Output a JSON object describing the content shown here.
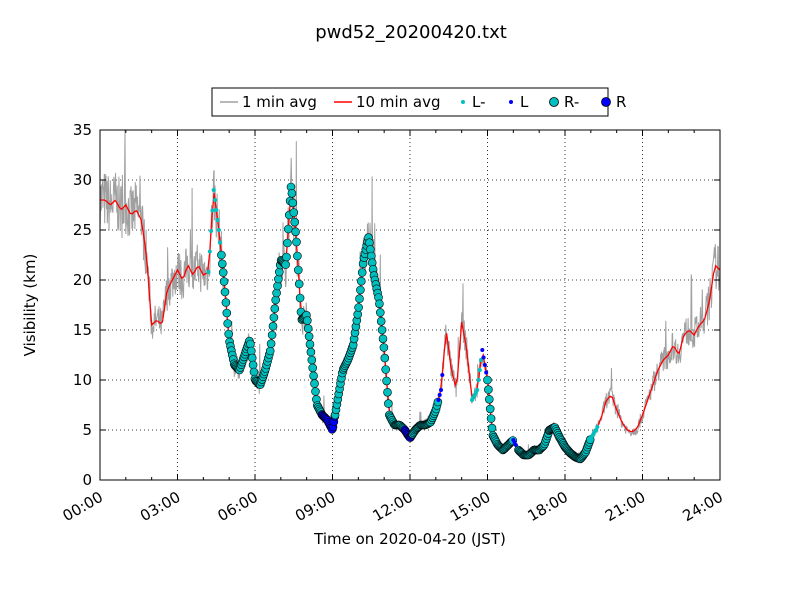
{
  "chart_data": {
    "type": "line",
    "title": "pwd52_20200420.txt",
    "xlabel": "Time on 2020-04-20 (JST)",
    "ylabel": "Visibility (km)",
    "xlim": [
      0,
      24
    ],
    "ylim": [
      0,
      35
    ],
    "xticks": [
      {
        "value": 0,
        "label": "00:00"
      },
      {
        "value": 3,
        "label": "03:00"
      },
      {
        "value": 6,
        "label": "06:00"
      },
      {
        "value": 9,
        "label": "09:00"
      },
      {
        "value": 12,
        "label": "12:00"
      },
      {
        "value": 15,
        "label": "15:00"
      },
      {
        "value": 18,
        "label": "18:00"
      },
      {
        "value": 21,
        "label": "21:00"
      },
      {
        "value": 24,
        "label": "24:00"
      }
    ],
    "yticks": [
      {
        "value": 0,
        "label": "0"
      },
      {
        "value": 5,
        "label": "5"
      },
      {
        "value": 10,
        "label": "10"
      },
      {
        "value": 15,
        "label": "15"
      },
      {
        "value": 20,
        "label": "20"
      },
      {
        "value": 25,
        "label": "25"
      },
      {
        "value": 30,
        "label": "30"
      },
      {
        "value": 35,
        "label": "35"
      }
    ],
    "grid": true,
    "legend_position": "top-center",
    "legend": [
      {
        "name": "1 min avg",
        "kind": "line",
        "color": "#a0a0a0"
      },
      {
        "name": "10 min avg",
        "kind": "line",
        "color": "#ff0000"
      },
      {
        "name": "L-",
        "kind": "small-dot",
        "color": "#00bfbf"
      },
      {
        "name": "L",
        "kind": "small-dot",
        "color": "#0000ff"
      },
      {
        "name": "R-",
        "kind": "big-dot",
        "color": "#00bfbf"
      },
      {
        "name": "R",
        "kind": "big-dot",
        "color": "#0000ff"
      }
    ],
    "series": [
      {
        "name": "10 min avg",
        "color": "#ff0000",
        "x": [
          0,
          0.2,
          0.4,
          0.6,
          0.8,
          1.0,
          1.2,
          1.4,
          1.6,
          1.8,
          2.0,
          2.2,
          2.4,
          2.6,
          2.8,
          3.0,
          3.2,
          3.4,
          3.6,
          3.8,
          4.0,
          4.2,
          4.4,
          4.6,
          4.8,
          5.0,
          5.2,
          5.4,
          5.6,
          5.8,
          6.0,
          6.2,
          6.4,
          6.6,
          6.8,
          7.0,
          7.2,
          7.4,
          7.6,
          7.8,
          8.0,
          8.2,
          8.4,
          8.6,
          8.8,
          9.0,
          9.2,
          9.4,
          9.6,
          9.8,
          10.0,
          10.2,
          10.4,
          10.6,
          10.8,
          11.0,
          11.2,
          11.4,
          11.6,
          11.8,
          12.0,
          12.2,
          12.4,
          12.6,
          12.8,
          13.0,
          13.2,
          13.4,
          13.6,
          13.8,
          14.0,
          14.2,
          14.4,
          14.6,
          14.8,
          15.0,
          15.2,
          15.4,
          15.6,
          15.8,
          16.0,
          16.2,
          16.4,
          16.6,
          16.8,
          17.0,
          17.2,
          17.4,
          17.6,
          17.8,
          18.0,
          18.2,
          18.4,
          18.6,
          18.8,
          19.0,
          19.2,
          19.4,
          19.6,
          19.8,
          20.0,
          20.2,
          20.4,
          20.6,
          20.8,
          21.0,
          21.2,
          21.4,
          21.6,
          21.8,
          22.0,
          22.2,
          22.4,
          22.6,
          22.8,
          23.0,
          23.2,
          23.4,
          23.6,
          23.8,
          24.0
        ],
        "y": [
          28,
          28,
          27.5,
          28,
          27,
          27.5,
          26.5,
          27,
          26,
          22.5,
          15.5,
          16,
          15.5,
          19,
          20,
          21,
          20,
          21.5,
          20.5,
          21.5,
          20.5,
          20.8,
          29,
          25,
          20,
          14,
          11.5,
          11,
          12.5,
          14,
          10,
          9.5,
          11,
          13,
          18,
          22,
          21.5,
          29.5,
          24,
          16,
          16.5,
          12,
          7.5,
          6.5,
          6,
          5,
          8,
          11,
          12,
          13.5,
          17,
          22,
          24.3,
          20.5,
          18,
          13,
          6.5,
          5.5,
          5.5,
          5,
          4.2,
          5,
          5.5,
          5.5,
          5.8,
          7,
          9,
          15,
          11,
          9,
          15.8,
          13,
          8,
          9,
          13,
          10,
          4.5,
          3.5,
          3,
          3.5,
          4,
          3,
          2.5,
          2.5,
          3,
          3,
          3.5,
          5,
          5.3,
          4.2,
          3.3,
          2.7,
          2.3,
          2.1,
          2.8,
          4.2,
          5.0,
          6.2,
          8.0,
          8.5,
          7.0,
          5.8,
          5.0,
          4.8,
          5.2,
          6.5,
          8,
          9.5,
          11,
          12,
          12.5,
          13.5,
          12.5,
          14.5,
          15,
          14.5,
          15.5,
          16,
          18,
          21.5,
          21
        ]
      }
    ]
  }
}
